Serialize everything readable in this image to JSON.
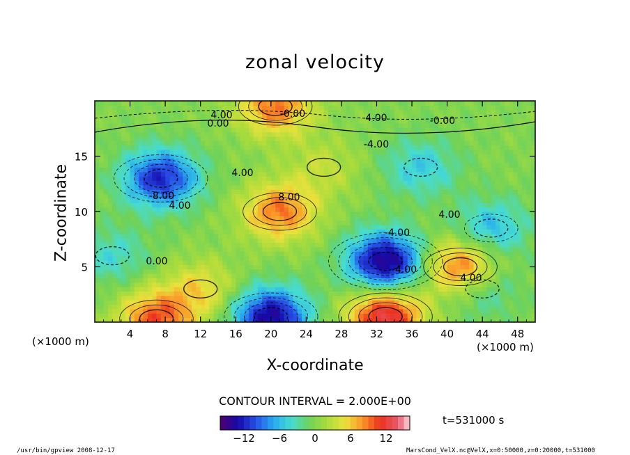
{
  "chart_data": {
    "type": "heatmap",
    "title": "zonal velocity",
    "xlabel": "X-coordinate",
    "ylabel": "Z-coordinate",
    "x_unit": "(×1000 m)",
    "x_unit_right": "(×1000 m)",
    "xlim": [
      0,
      50
    ],
    "ylim": [
      0,
      20
    ],
    "x_ticks": [
      "4",
      "8",
      "12",
      "16",
      "20",
      "24",
      "28",
      "32",
      "36",
      "40",
      "44",
      "48"
    ],
    "y_ticks": [
      "5",
      "10",
      "15"
    ],
    "contour_interval_text": "CONTOUR INTERVAL = 2.000E+00",
    "colorbar": {
      "min": -16,
      "max": 16,
      "ticks": [
        "−12",
        "−6",
        "0",
        "6",
        "12"
      ]
    },
    "contour_labels": [
      "4.00",
      "0.00",
      "-0.00",
      "4.00",
      "-4.00",
      "-0.00",
      "4.00",
      "8.00",
      "-8.00",
      "4.00",
      "-4.00",
      "4.00",
      "0.00",
      "-4.00",
      "4.00"
    ],
    "blobs": [
      {
        "x": 7.5,
        "z": 13,
        "v": -12
      },
      {
        "x": 21,
        "z": 10,
        "v": 9
      },
      {
        "x": 33,
        "z": 5.5,
        "v": -15
      },
      {
        "x": 41.5,
        "z": 5,
        "v": 10
      },
      {
        "x": 20,
        "z": 0.5,
        "v": -14
      },
      {
        "x": 33,
        "z": 0.5,
        "v": 13
      },
      {
        "x": 7,
        "z": 0.3,
        "v": 10
      },
      {
        "x": 37,
        "z": 14,
        "v": -5
      },
      {
        "x": 45,
        "z": 8.5,
        "v": -6
      },
      {
        "x": 20.5,
        "z": 19.5,
        "v": 9
      },
      {
        "x": 26,
        "z": 14,
        "v": 3
      },
      {
        "x": 2,
        "z": 6,
        "v": -4
      },
      {
        "x": 12,
        "z": 3,
        "v": 5
      },
      {
        "x": 44,
        "z": 3,
        "v": -4
      }
    ]
  },
  "labels": {
    "time": "t=531000 s",
    "footer_left": "/usr/bin/gpview   2008-12-17",
    "footer_right": "MarsCond_VelX.nc@VelX,x=0:50000,z=0:20000,t=531000"
  }
}
